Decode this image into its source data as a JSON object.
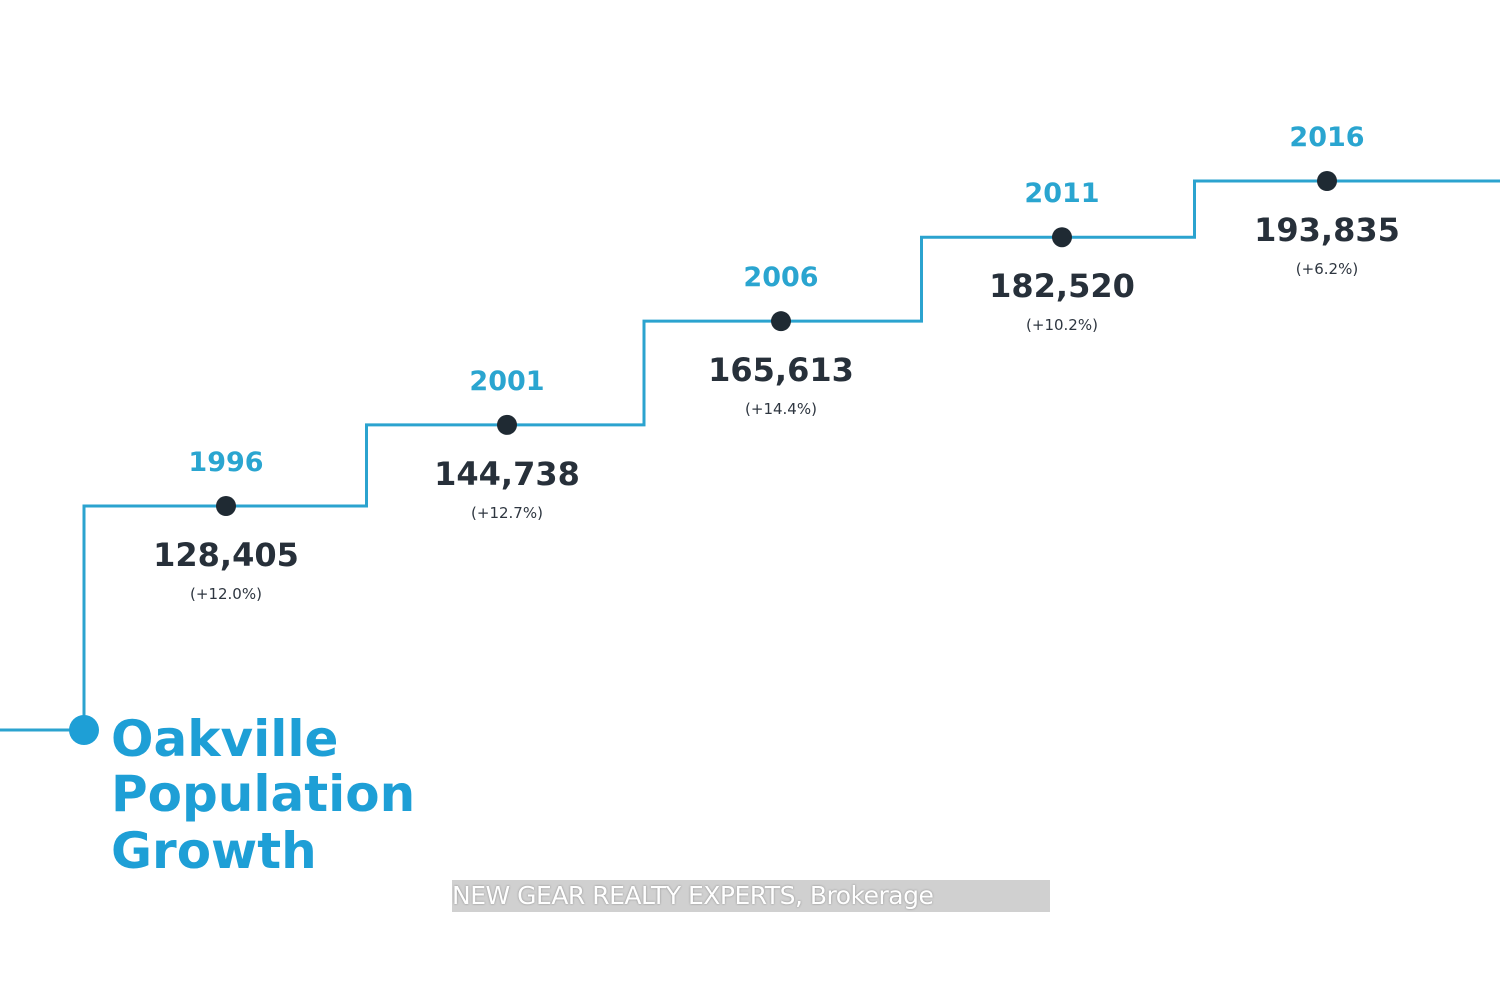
{
  "chart_data": {
    "type": "line",
    "title": "Oakville Population Growth",
    "title_lines": [
      "Oakville",
      "Population",
      "Growth"
    ],
    "xlabel": "",
    "ylabel": "",
    "series": [
      {
        "name": "Population",
        "style": "step",
        "x": [
          "1996",
          "2001",
          "2006",
          "2011",
          "2016"
        ],
        "values": [
          128405,
          144738,
          165613,
          182520,
          193835
        ]
      }
    ],
    "points": [
      {
        "year": "1996",
        "value": 128405,
        "value_label": "128,405",
        "change_label": "(+12.0%)"
      },
      {
        "year": "2001",
        "value": 144738,
        "value_label": "144,738",
        "change_label": "(+12.7%)"
      },
      {
        "year": "2006",
        "value": 165613,
        "value_label": "165,613",
        "change_label": "(+14.4%)"
      },
      {
        "year": "2011",
        "value": 182520,
        "value_label": "182,520",
        "change_label": "(+10.2%)"
      },
      {
        "year": "2016",
        "value": 193835,
        "value_label": "193,835",
        "change_label": "(+6.2%)"
      }
    ],
    "grid": false,
    "legend": "none"
  },
  "watermark": "NEW GEAR REALTY EXPERTS, Brokerage",
  "colors": {
    "line": "#2ba3cf",
    "year_text": "#2aa5d0",
    "title_text": "#1e9fd6",
    "dot": "#1f2a33",
    "start_dot": "#1e9fd6",
    "value_text": "#27303a"
  }
}
